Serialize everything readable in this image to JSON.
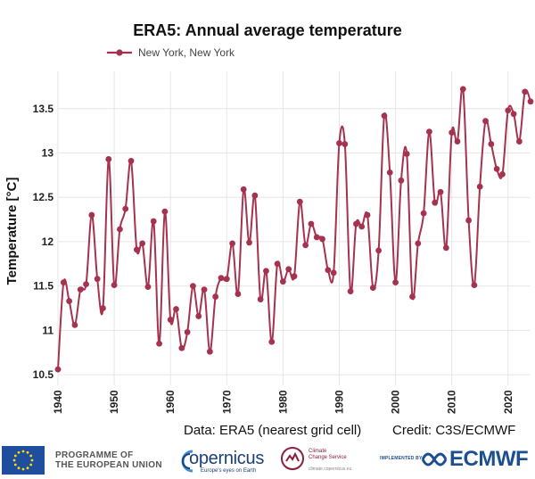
{
  "chart_data": {
    "type": "line",
    "title": "ERA5: Annual average temperature",
    "ylabel": "Temperature [°C]",
    "xlabel": "",
    "ylim": [
      10.38,
      13.92
    ],
    "xlim": [
      1940,
      2024
    ],
    "yticks": [
      "10.5",
      "11",
      "11.5",
      "12",
      "12.5",
      "13",
      "13.5"
    ],
    "xticks": [
      "1940",
      "1950",
      "1960",
      "1970",
      "1980",
      "1990",
      "2000",
      "2010",
      "2020"
    ],
    "legend_placement": "top-left",
    "grid": true,
    "series_color": "#a5334f",
    "series": [
      {
        "name": "New York, New York",
        "x": [
          1940,
          1941,
          1942,
          1943,
          1944,
          1945,
          1946,
          1947,
          1948,
          1949,
          1950,
          1951,
          1952,
          1953,
          1954,
          1955,
          1956,
          1957,
          1958,
          1959,
          1960,
          1961,
          1962,
          1963,
          1964,
          1965,
          1966,
          1967,
          1968,
          1969,
          1970,
          1971,
          1972,
          1973,
          1974,
          1975,
          1976,
          1977,
          1978,
          1979,
          1980,
          1981,
          1982,
          1983,
          1984,
          1985,
          1986,
          1987,
          1988,
          1989,
          1990,
          1991,
          1992,
          1993,
          1994,
          1995,
          1996,
          1997,
          1998,
          1999,
          2000,
          2001,
          2002,
          2003,
          2004,
          2005,
          2006,
          2007,
          2008,
          2009,
          2010,
          2011,
          2012,
          2013,
          2014,
          2015,
          2016,
          2017,
          2018,
          2019,
          2020,
          2021,
          2022,
          2023,
          2024
        ],
        "values": [
          10.56,
          11.54,
          11.33,
          11.06,
          11.46,
          11.52,
          12.3,
          11.58,
          11.25,
          12.93,
          11.51,
          12.14,
          12.37,
          12.91,
          11.91,
          11.98,
          11.49,
          12.23,
          10.85,
          12.34,
          11.12,
          11.24,
          10.8,
          10.98,
          11.5,
          11.16,
          11.46,
          10.76,
          11.38,
          11.59,
          11.58,
          11.98,
          11.41,
          12.59,
          11.99,
          12.52,
          11.35,
          11.67,
          10.87,
          11.75,
          11.55,
          11.69,
          11.61,
          12.45,
          11.96,
          12.2,
          12.05,
          12.03,
          11.68,
          11.65,
          13.11,
          13.1,
          11.44,
          12.2,
          12.17,
          12.3,
          11.48,
          11.9,
          13.42,
          12.78,
          11.54,
          12.69,
          12.99,
          11.38,
          11.98,
          12.32,
          13.24,
          12.44,
          12.56,
          11.93,
          13.23,
          13.13,
          13.72,
          12.24,
          11.51,
          12.62,
          13.36,
          13.1,
          12.82,
          12.76,
          13.48,
          13.44,
          13.13,
          13.69,
          13.58
        ]
      }
    ]
  },
  "credits": {
    "data": "Data: ERA5 (nearest grid cell)",
    "credit": "Credit: C3S/ECMWF"
  },
  "footer": {
    "eu_line1": "PROGRAMME OF",
    "eu_line2": "THE EUROPEAN UNION",
    "copernicus": "opernicus",
    "copernicus_sub": "Europe's eyes on Earth",
    "c3s_line1": "Climate",
    "c3s_line2": "Change Service",
    "c3s_url": "climate.copernicus.eu",
    "implemented_by": "IMPLEMENTED BY",
    "ecmwf": "ECMWF"
  }
}
